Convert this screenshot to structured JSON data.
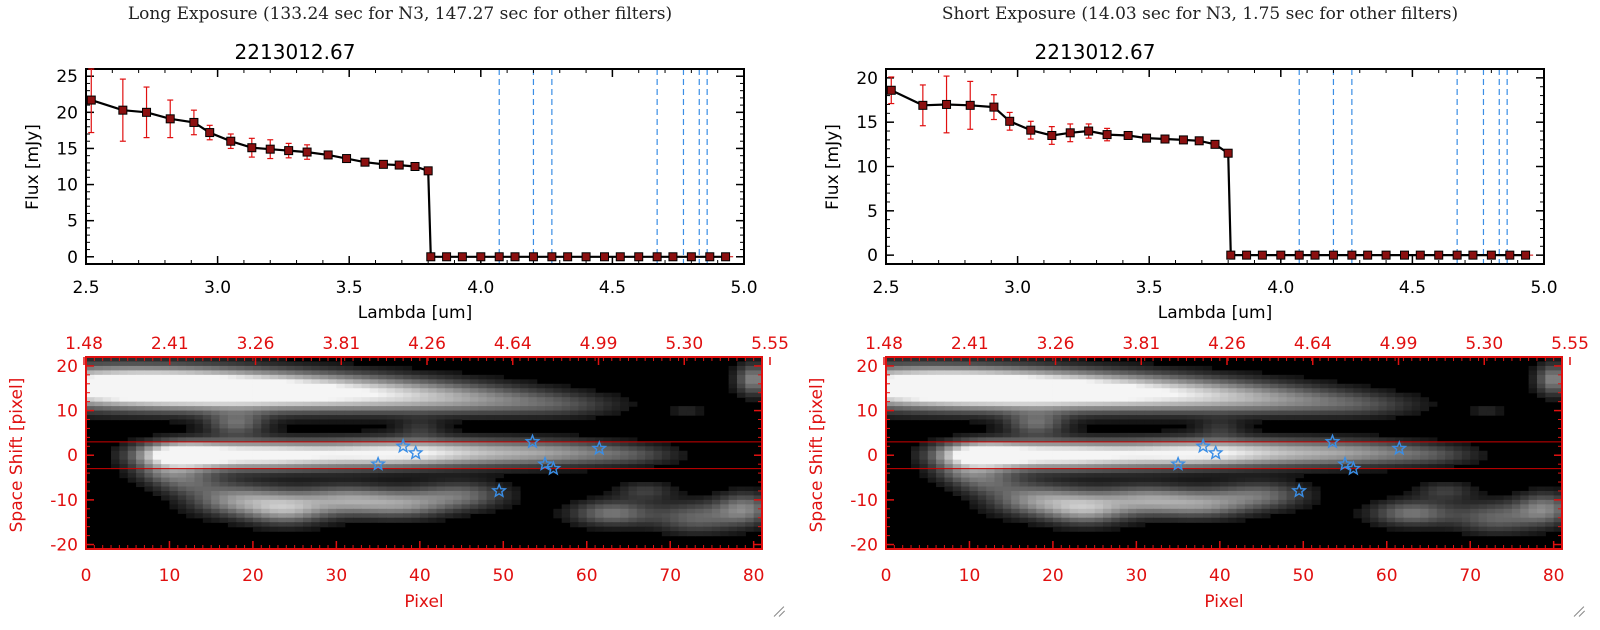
{
  "panels": [
    {
      "title": "Long Exposure (133.24 sec for N3, 147.27 sec for other filters)",
      "spectrum": {
        "title": "2213012.67",
        "xlabel": "Lambda [um]",
        "ylabel": "Flux [mJy]",
        "xlim": [
          2.5,
          5.0
        ],
        "ylim": [
          -1,
          26
        ],
        "xticks": [
          2.5,
          3.0,
          3.5,
          4.0,
          4.5,
          5.0
        ],
        "xticklabels": [
          "2.5",
          "3.0",
          "3.5",
          "4.0",
          "4.5",
          "5.0"
        ],
        "yticks": [
          0,
          5,
          10,
          15,
          20,
          25
        ],
        "yticklabels": [
          "0",
          "5",
          "10",
          "15",
          "20",
          "25"
        ]
      },
      "image": {
        "xlabel": "Pixel",
        "ylabel": "Space Shift [pixel]",
        "xlim": [
          0,
          81
        ],
        "ylim": [
          -21,
          22
        ],
        "xticks": [
          0,
          10,
          20,
          30,
          40,
          50,
          60,
          70,
          80
        ],
        "xticklabels": [
          "0",
          "10",
          "20",
          "30",
          "40",
          "50",
          "60",
          "70",
          "80"
        ],
        "yticks": [
          20,
          10,
          0,
          -10,
          -20
        ],
        "yticklabels": [
          "20",
          "10",
          "0",
          "-10",
          "-20"
        ],
        "top_axis_labels": [
          "1.48",
          "2.41",
          "3.26",
          "3.81",
          "4.26",
          "4.64",
          "4.99",
          "5.30",
          "5.55"
        ],
        "aperture_lines": [
          3,
          -3
        ]
      }
    },
    {
      "title": "Short Exposure (14.03 sec for N3, 1.75 sec for other filters)",
      "spectrum": {
        "title": "2213012.67",
        "xlabel": "Lambda [um]",
        "ylabel": "Flux [mJy]",
        "xlim": [
          2.5,
          5.0
        ],
        "ylim": [
          -1,
          21
        ],
        "xticks": [
          2.5,
          3.0,
          3.5,
          4.0,
          4.5,
          5.0
        ],
        "xticklabels": [
          "2.5",
          "3.0",
          "3.5",
          "4.0",
          "4.5",
          "5.0"
        ],
        "yticks": [
          0,
          5,
          10,
          15,
          20
        ],
        "yticklabels": [
          "0",
          "5",
          "10",
          "15",
          "20"
        ]
      },
      "image": {
        "xlabel": "Pixel",
        "ylabel": "Space Shift [pixel]",
        "xlim": [
          0,
          81
        ],
        "ylim": [
          -21,
          22
        ],
        "xticks": [
          0,
          10,
          20,
          30,
          40,
          50,
          60,
          70,
          80
        ],
        "xticklabels": [
          "0",
          "10",
          "20",
          "30",
          "40",
          "50",
          "60",
          "70",
          "80"
        ],
        "yticks": [
          20,
          10,
          0,
          -10,
          -20
        ],
        "yticklabels": [
          "20",
          "10",
          "0",
          "-10",
          "-20"
        ],
        "top_axis_labels": [
          "1.48",
          "2.41",
          "3.26",
          "3.81",
          "4.26",
          "4.64",
          "4.99",
          "5.30",
          "5.55"
        ],
        "aperture_lines": [
          3,
          -3
        ]
      }
    }
  ],
  "chart_data": [
    {
      "type": "line",
      "title": "2213012.67",
      "xlabel": "Lambda [um]",
      "ylabel": "Flux [mJy]",
      "xlim": [
        2.5,
        5.0
      ],
      "ylim": [
        -1,
        26
      ],
      "series": [
        {
          "x": [
            2.52,
            2.64,
            2.73,
            2.82,
            2.91,
            2.97,
            3.05,
            3.13,
            3.2,
            3.27,
            3.34,
            3.42,
            3.49,
            3.56,
            3.63,
            3.69,
            3.75,
            3.8,
            3.81,
            3.87,
            3.93,
            4.0,
            4.07,
            4.13,
            4.2,
            4.27,
            4.33,
            4.4,
            4.47,
            4.53,
            4.6,
            4.67,
            4.73,
            4.8,
            4.87,
            4.93
          ],
          "y": [
            21.7,
            20.3,
            20.0,
            19.1,
            18.6,
            17.2,
            16.0,
            15.1,
            14.9,
            14.7,
            14.5,
            14.1,
            13.6,
            13.1,
            12.8,
            12.7,
            12.5,
            11.9,
            0.0,
            0.0,
            0.0,
            0.0,
            0.0,
            0.0,
            0.0,
            0.0,
            0.0,
            0.0,
            0.0,
            0.0,
            0.0,
            0.0,
            0.0,
            0.0,
            0.0,
            0.0
          ],
          "yerr": [
            4.5,
            4.3,
            3.5,
            2.6,
            1.7,
            1.0,
            1.0,
            1.3,
            1.3,
            1.0,
            1.0,
            0.4,
            0.4,
            0.3,
            0.3,
            0.3,
            0.3,
            0.3,
            0,
            0,
            0,
            0,
            0,
            0,
            0,
            0,
            0,
            0,
            0,
            0,
            0,
            0,
            0,
            0,
            0,
            0
          ]
        }
      ],
      "vlines": [
        4.07,
        4.2,
        4.27,
        4.67,
        4.77,
        4.83,
        4.86
      ]
    },
    {
      "type": "line",
      "title": "2213012.67",
      "xlabel": "Lambda [um]",
      "ylabel": "Flux [mJy]",
      "xlim": [
        2.5,
        5.0
      ],
      "ylim": [
        -1,
        21
      ],
      "series": [
        {
          "x": [
            2.52,
            2.64,
            2.73,
            2.82,
            2.91,
            2.97,
            3.05,
            3.13,
            3.2,
            3.27,
            3.34,
            3.42,
            3.49,
            3.56,
            3.63,
            3.69,
            3.75,
            3.8,
            3.81,
            3.87,
            3.93,
            4.0,
            4.07,
            4.13,
            4.2,
            4.27,
            4.33,
            4.4,
            4.47,
            4.53,
            4.6,
            4.67,
            4.73,
            4.8,
            4.87,
            4.93
          ],
          "y": [
            18.6,
            16.9,
            17.0,
            16.9,
            16.7,
            15.1,
            14.1,
            13.5,
            13.8,
            14.0,
            13.6,
            13.5,
            13.2,
            13.1,
            13.0,
            12.9,
            12.5,
            11.5,
            0.0,
            0.0,
            0.0,
            0.0,
            0.0,
            0.0,
            0.0,
            0.0,
            0.0,
            0.0,
            0.0,
            0.0,
            0.0,
            0.0,
            0.0,
            0.0,
            0.0,
            0.0
          ],
          "yerr": [
            1.5,
            2.3,
            3.2,
            2.7,
            1.4,
            1.0,
            1.0,
            1.0,
            1.0,
            0.8,
            0.7,
            0.3,
            0.3,
            0.3,
            0.3,
            0.3,
            0.3,
            0.3,
            0,
            0,
            0,
            0,
            0,
            0,
            0,
            0,
            0,
            0,
            0,
            0,
            0,
            0,
            0,
            0,
            0,
            0
          ]
        }
      ],
      "vlines": [
        4.07,
        4.2,
        4.27,
        4.67,
        4.77,
        4.83,
        4.86
      ]
    },
    {
      "type": "heatmap",
      "xlabel": "Pixel",
      "ylabel": "Space Shift [pixel]",
      "xlim": [
        0,
        81
      ],
      "ylim": [
        -21,
        22
      ],
      "aperture_lines": [
        3,
        -3
      ],
      "stars": [
        {
          "x": 35,
          "y": -2
        },
        {
          "x": 38,
          "y": 2
        },
        {
          "x": 39.5,
          "y": 0.5
        },
        {
          "x": 49.5,
          "y": -8
        },
        {
          "x": 53.5,
          "y": 3
        },
        {
          "x": 55,
          "y": -2
        },
        {
          "x": 56,
          "y": -3
        },
        {
          "x": 61.5,
          "y": 1.5
        }
      ]
    },
    {
      "type": "heatmap",
      "xlabel": "Pixel",
      "ylabel": "Space Shift [pixel]",
      "xlim": [
        0,
        81
      ],
      "ylim": [
        -21,
        22
      ],
      "aperture_lines": [
        3,
        -3
      ],
      "stars": [
        {
          "x": 35,
          "y": -2
        },
        {
          "x": 38,
          "y": 2
        },
        {
          "x": 39.5,
          "y": 0.5
        },
        {
          "x": 49.5,
          "y": -8
        },
        {
          "x": 53.5,
          "y": 3
        },
        {
          "x": 55,
          "y": -2
        },
        {
          "x": 56,
          "y": -3
        },
        {
          "x": 61.5,
          "y": 1.5
        }
      ]
    }
  ],
  "colors": {
    "axis": "#000000",
    "image_axis": "#e01010",
    "errorbar": "#e01010",
    "marker": "#8b1010",
    "vline": "#3a8ee6",
    "star": "#3a8ee6",
    "aperture": "#cc0000",
    "zero_line": "#cc0000"
  },
  "icons": {
    "data_point": "square-marker",
    "source": "star-marker",
    "resize": "resize-grip-icon"
  }
}
